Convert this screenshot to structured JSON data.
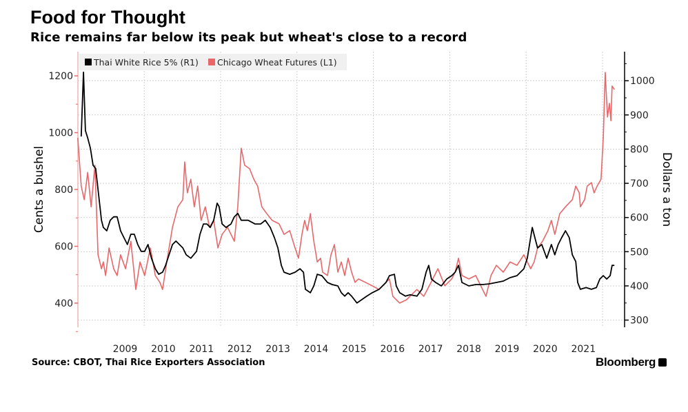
{
  "title": "Food for Thought",
  "subtitle": "Rice remains far below its peak but wheat's close to a record",
  "source": "Source: CBOT, Thai Rice Exporters Association",
  "brand": "Bloomberg",
  "colors": {
    "rice": "#000000",
    "wheat": "#e8676a",
    "grid": "#cccccc",
    "legend_bg": "#f0f0f0"
  },
  "chart_data": {
    "type": "line",
    "title": "Food for Thought",
    "ylabel_left": "Cents a bushel",
    "ylabel_right": "Dollars a ton",
    "x_ticks": [
      "2009",
      "2010",
      "2011",
      "2012",
      "2013",
      "2014",
      "2015",
      "2016",
      "2017",
      "2018",
      "2019",
      "2020",
      "2021"
    ],
    "left_ticks": [
      400,
      600,
      800,
      1000,
      1200
    ],
    "right_ticks": [
      300,
      400,
      500,
      600,
      700,
      800,
      900,
      1000
    ],
    "ylim_left": [
      315,
      1285
    ],
    "ylim_right": [
      279,
      1085
    ],
    "xlim": [
      2008.26,
      2022.5
    ],
    "grid": true,
    "legend_position": "top-left",
    "series": [
      {
        "name": "Thai White Rice 5% (R1)",
        "axis": "right",
        "color": "#000000",
        "points": [
          [
            2008.35,
            837
          ],
          [
            2008.41,
            1025
          ],
          [
            2008.46,
            854
          ],
          [
            2008.52,
            833
          ],
          [
            2008.59,
            803
          ],
          [
            2008.66,
            753
          ],
          [
            2008.73,
            743
          ],
          [
            2008.81,
            662
          ],
          [
            2008.88,
            592
          ],
          [
            2008.93,
            571
          ],
          [
            2009.02,
            561
          ],
          [
            2009.11,
            592
          ],
          [
            2009.2,
            602
          ],
          [
            2009.29,
            602
          ],
          [
            2009.38,
            561
          ],
          [
            2009.47,
            541
          ],
          [
            2009.56,
            521
          ],
          [
            2009.65,
            551
          ],
          [
            2009.74,
            551
          ],
          [
            2009.83,
            521
          ],
          [
            2009.92,
            501
          ],
          [
            2010.01,
            501
          ],
          [
            2010.1,
            521
          ],
          [
            2010.19,
            481
          ],
          [
            2010.29,
            450
          ],
          [
            2010.38,
            434
          ],
          [
            2010.48,
            440
          ],
          [
            2010.56,
            460
          ],
          [
            2010.65,
            491
          ],
          [
            2010.74,
            521
          ],
          [
            2010.83,
            531
          ],
          [
            2010.92,
            521
          ],
          [
            2011.01,
            511
          ],
          [
            2011.1,
            491
          ],
          [
            2011.22,
            481
          ],
          [
            2011.37,
            501
          ],
          [
            2011.46,
            551
          ],
          [
            2011.55,
            581
          ],
          [
            2011.64,
            581
          ],
          [
            2011.73,
            571
          ],
          [
            2011.82,
            592
          ],
          [
            2011.91,
            642
          ],
          [
            2011.96,
            632
          ],
          [
            2012.04,
            581
          ],
          [
            2012.14,
            571
          ],
          [
            2012.27,
            581
          ],
          [
            2012.36,
            602
          ],
          [
            2012.45,
            612
          ],
          [
            2012.54,
            592
          ],
          [
            2012.72,
            592
          ],
          [
            2012.9,
            581
          ],
          [
            2013.05,
            581
          ],
          [
            2013.17,
            592
          ],
          [
            2013.3,
            571
          ],
          [
            2013.41,
            541
          ],
          [
            2013.5,
            511
          ],
          [
            2013.59,
            460
          ],
          [
            2013.66,
            440
          ],
          [
            2013.81,
            434
          ],
          [
            2013.95,
            440
          ],
          [
            2014.08,
            450
          ],
          [
            2014.17,
            440
          ],
          [
            2014.22,
            390
          ],
          [
            2014.35,
            380
          ],
          [
            2014.44,
            400
          ],
          [
            2014.53,
            434
          ],
          [
            2014.65,
            430
          ],
          [
            2014.8,
            410
          ],
          [
            2014.92,
            404
          ],
          [
            2015.07,
            400
          ],
          [
            2015.16,
            380
          ],
          [
            2015.25,
            370
          ],
          [
            2015.34,
            380
          ],
          [
            2015.43,
            370
          ],
          [
            2015.57,
            350
          ],
          [
            2015.7,
            360
          ],
          [
            2015.83,
            370
          ],
          [
            2015.97,
            380
          ],
          [
            2016.15,
            390
          ],
          [
            2016.33,
            410
          ],
          [
            2016.42,
            430
          ],
          [
            2016.55,
            434
          ],
          [
            2016.6,
            400
          ],
          [
            2016.69,
            380
          ],
          [
            2016.84,
            370
          ],
          [
            2016.96,
            374
          ],
          [
            2017.14,
            370
          ],
          [
            2017.27,
            390
          ],
          [
            2017.38,
            440
          ],
          [
            2017.45,
            460
          ],
          [
            2017.52,
            420
          ],
          [
            2017.63,
            410
          ],
          [
            2017.78,
            400
          ],
          [
            2017.92,
            420
          ],
          [
            2018.05,
            430
          ],
          [
            2018.14,
            440
          ],
          [
            2018.23,
            460
          ],
          [
            2018.32,
            410
          ],
          [
            2018.5,
            400
          ],
          [
            2018.68,
            404
          ],
          [
            2018.86,
            404
          ],
          [
            2019.04,
            406
          ],
          [
            2019.22,
            410
          ],
          [
            2019.4,
            414
          ],
          [
            2019.58,
            424
          ],
          [
            2019.76,
            430
          ],
          [
            2019.85,
            440
          ],
          [
            2019.94,
            450
          ],
          [
            2020.03,
            481
          ],
          [
            2020.16,
            571
          ],
          [
            2020.23,
            541
          ],
          [
            2020.3,
            511
          ],
          [
            2020.41,
            521
          ],
          [
            2020.54,
            481
          ],
          [
            2020.66,
            521
          ],
          [
            2020.75,
            491
          ],
          [
            2020.84,
            521
          ],
          [
            2020.93,
            541
          ],
          [
            2021.03,
            561
          ],
          [
            2021.13,
            541
          ],
          [
            2021.21,
            491
          ],
          [
            2021.3,
            471
          ],
          [
            2021.35,
            410
          ],
          [
            2021.42,
            390
          ],
          [
            2021.57,
            395
          ],
          [
            2021.71,
            390
          ],
          [
            2021.84,
            395
          ],
          [
            2021.93,
            420
          ],
          [
            2022.02,
            430
          ],
          [
            2022.11,
            420
          ],
          [
            2022.2,
            430
          ],
          [
            2022.25,
            460
          ],
          [
            2022.31,
            460
          ]
        ]
      },
      {
        "name": "Chicago Wheat Futures (L1)",
        "axis": "left",
        "color": "#e8676a",
        "points": [
          [
            2008.26,
            982
          ],
          [
            2008.35,
            812
          ],
          [
            2008.43,
            764
          ],
          [
            2008.52,
            860
          ],
          [
            2008.61,
            739
          ],
          [
            2008.71,
            885
          ],
          [
            2008.79,
            570
          ],
          [
            2008.88,
            521
          ],
          [
            2008.93,
            545
          ],
          [
            2008.99,
            497
          ],
          [
            2009.08,
            594
          ],
          [
            2009.2,
            521
          ],
          [
            2009.29,
            497
          ],
          [
            2009.38,
            570
          ],
          [
            2009.51,
            521
          ],
          [
            2009.65,
            618
          ],
          [
            2009.78,
            448
          ],
          [
            2009.89,
            545
          ],
          [
            2010.01,
            497
          ],
          [
            2010.16,
            594
          ],
          [
            2010.29,
            497
          ],
          [
            2010.41,
            473
          ],
          [
            2010.48,
            448
          ],
          [
            2010.59,
            545
          ],
          [
            2010.74,
            667
          ],
          [
            2010.88,
            739
          ],
          [
            2011.01,
            764
          ],
          [
            2011.06,
            897
          ],
          [
            2011.13,
            788
          ],
          [
            2011.22,
            836
          ],
          [
            2011.31,
            739
          ],
          [
            2011.4,
            812
          ],
          [
            2011.49,
            691
          ],
          [
            2011.6,
            739
          ],
          [
            2011.71,
            667
          ],
          [
            2011.82,
            691
          ],
          [
            2011.93,
            594
          ],
          [
            2012.04,
            642
          ],
          [
            2012.18,
            667
          ],
          [
            2012.36,
            618
          ],
          [
            2012.45,
            739
          ],
          [
            2012.54,
            945
          ],
          [
            2012.63,
            885
          ],
          [
            2012.76,
            873
          ],
          [
            2012.87,
            836
          ],
          [
            2012.97,
            812
          ],
          [
            2013.08,
            739
          ],
          [
            2013.21,
            715
          ],
          [
            2013.35,
            691
          ],
          [
            2013.53,
            679
          ],
          [
            2013.66,
            642
          ],
          [
            2013.81,
            655
          ],
          [
            2013.95,
            594
          ],
          [
            2014.04,
            558
          ],
          [
            2014.13,
            642
          ],
          [
            2014.2,
            691
          ],
          [
            2014.27,
            655
          ],
          [
            2014.35,
            715
          ],
          [
            2014.44,
            618
          ],
          [
            2014.53,
            545
          ],
          [
            2014.62,
            558
          ],
          [
            2014.67,
            509
          ],
          [
            2014.8,
            497
          ],
          [
            2014.89,
            570
          ],
          [
            2014.98,
            606
          ],
          [
            2015.07,
            509
          ],
          [
            2015.16,
            545
          ],
          [
            2015.25,
            497
          ],
          [
            2015.34,
            558
          ],
          [
            2015.43,
            509
          ],
          [
            2015.52,
            473
          ],
          [
            2015.61,
            485
          ],
          [
            2015.79,
            473
          ],
          [
            2015.97,
            461
          ],
          [
            2016.15,
            448
          ],
          [
            2016.33,
            473
          ],
          [
            2016.42,
            485
          ],
          [
            2016.51,
            424
          ],
          [
            2016.6,
            412
          ],
          [
            2016.69,
            400
          ],
          [
            2016.87,
            412
          ],
          [
            2017.05,
            436
          ],
          [
            2017.14,
            448
          ],
          [
            2017.32,
            424
          ],
          [
            2017.51,
            473
          ],
          [
            2017.69,
            521
          ],
          [
            2017.87,
            461
          ],
          [
            2018.05,
            485
          ],
          [
            2018.14,
            509
          ],
          [
            2018.23,
            558
          ],
          [
            2018.32,
            497
          ],
          [
            2018.5,
            485
          ],
          [
            2018.68,
            497
          ],
          [
            2018.86,
            448
          ],
          [
            2018.95,
            424
          ],
          [
            2019.08,
            497
          ],
          [
            2019.22,
            533
          ],
          [
            2019.4,
            509
          ],
          [
            2019.58,
            545
          ],
          [
            2019.76,
            533
          ],
          [
            2019.94,
            570
          ],
          [
            2020.12,
            521
          ],
          [
            2020.21,
            545
          ],
          [
            2020.3,
            594
          ],
          [
            2020.43,
            618
          ],
          [
            2020.57,
            655
          ],
          [
            2020.66,
            691
          ],
          [
            2020.75,
            642
          ],
          [
            2020.88,
            715
          ],
          [
            2021.03,
            739
          ],
          [
            2021.21,
            764
          ],
          [
            2021.3,
            812
          ],
          [
            2021.39,
            788
          ],
          [
            2021.42,
            739
          ],
          [
            2021.53,
            764
          ],
          [
            2021.6,
            812
          ],
          [
            2021.71,
            824
          ],
          [
            2021.78,
            788
          ],
          [
            2021.86,
            812
          ],
          [
            2021.96,
            836
          ],
          [
            2022.02,
            982
          ],
          [
            2022.07,
            1212
          ],
          [
            2022.13,
            1055
          ],
          [
            2022.18,
            1103
          ],
          [
            2022.22,
            1042
          ],
          [
            2022.25,
            1164
          ],
          [
            2022.31,
            1152
          ]
        ]
      }
    ]
  }
}
